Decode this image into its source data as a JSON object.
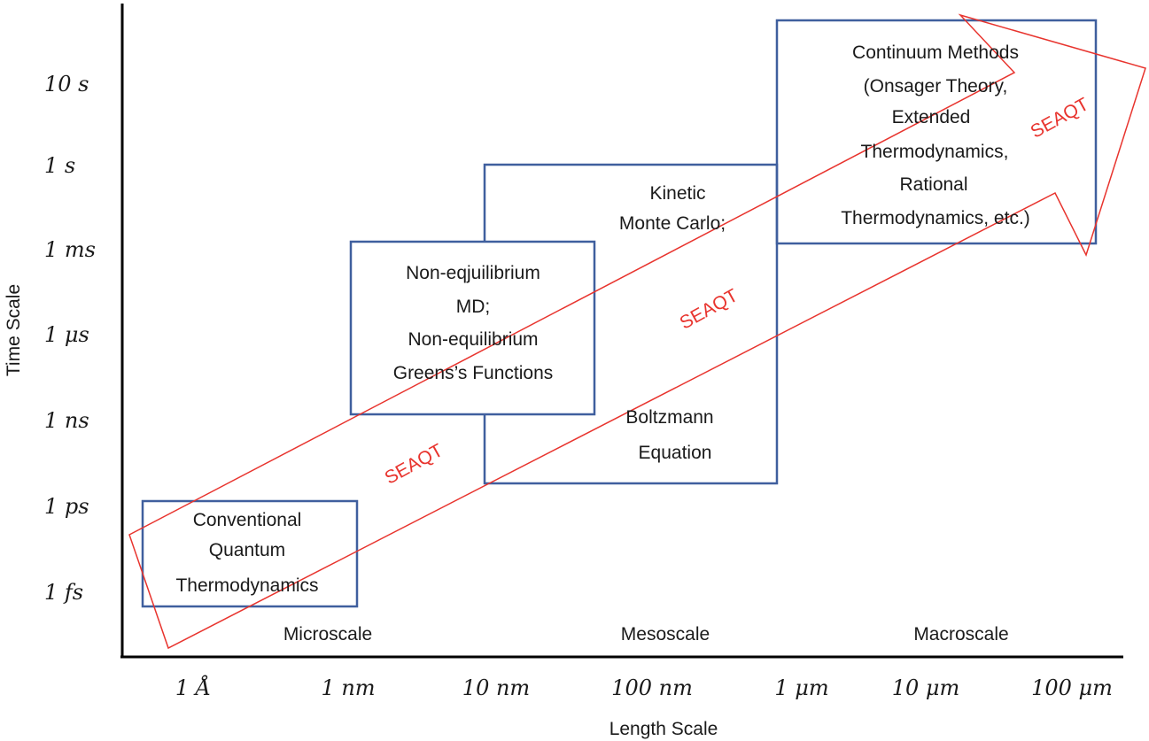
{
  "axes": {
    "x_title": "Length Scale",
    "y_title": "Time Scale",
    "y_ticks": [
      "10 s",
      "1 s",
      "1 ms",
      "1 μs",
      "1 ns",
      "1 ps",
      "1 fs"
    ],
    "x_ticks": [
      "1 Å",
      "1 nm",
      "10 nm",
      "100 nm",
      "1 μm",
      "10 μm",
      "100 μm"
    ]
  },
  "scale_labels": [
    "Microscale",
    "Mesoscale",
    "Macroscale"
  ],
  "boxes": {
    "quantum": [
      "Conventional",
      "Quantum",
      "Thermodynamics"
    ],
    "md": [
      "Non-eqjuilibrium",
      "MD;",
      "Non-equilibrium",
      "Greens’s Functions"
    ],
    "kinetic": [
      "Kinetic",
      "Monte Carlo;"
    ],
    "boltzmann": [
      "Boltzmann",
      "Equation"
    ],
    "continuum": [
      "Continuum Methods",
      "(Onsager Theory,",
      "Extended",
      "Thermodynamics,",
      "Rational",
      "Thermodynamics, etc.)"
    ]
  },
  "arrow_labels": [
    "SEAQT",
    "SEAQT",
    "SEAQT"
  ],
  "colors": {
    "box_stroke": "#3f5f9e",
    "arrow": "#e8342e",
    "axis": "#000000",
    "text": "#1a1a1a"
  }
}
